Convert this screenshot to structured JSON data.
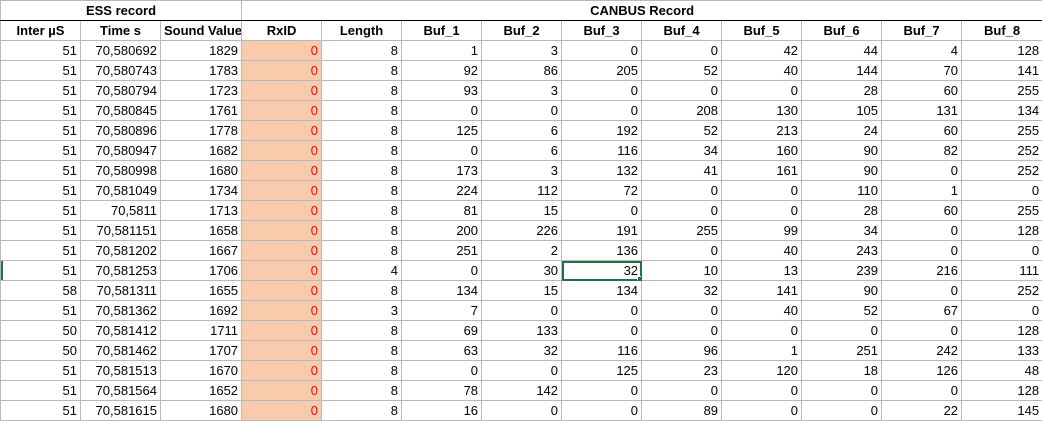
{
  "groups": {
    "ess": "ESS record",
    "canbus": "CANBUS Record"
  },
  "columns": [
    "Inter µS",
    "Time s",
    "Sound Value",
    "RxID",
    "Length",
    "Buf_1",
    "Buf_2",
    "Buf_3",
    "Buf_4",
    "Buf_5",
    "Buf_6",
    "Buf_7",
    "Buf_8"
  ],
  "rows": [
    [
      "51",
      "70,580692",
      "1829",
      "0",
      "8",
      "1",
      "3",
      "0",
      "0",
      "42",
      "44",
      "4",
      "128"
    ],
    [
      "51",
      "70,580743",
      "1783",
      "0",
      "8",
      "92",
      "86",
      "205",
      "52",
      "40",
      "144",
      "70",
      "141"
    ],
    [
      "51",
      "70,580794",
      "1723",
      "0",
      "8",
      "93",
      "3",
      "0",
      "0",
      "0",
      "28",
      "60",
      "255"
    ],
    [
      "51",
      "70,580845",
      "1761",
      "0",
      "8",
      "0",
      "0",
      "0",
      "208",
      "130",
      "105",
      "131",
      "134"
    ],
    [
      "51",
      "70,580896",
      "1778",
      "0",
      "8",
      "125",
      "6",
      "192",
      "52",
      "213",
      "24",
      "60",
      "255"
    ],
    [
      "51",
      "70,580947",
      "1682",
      "0",
      "8",
      "0",
      "6",
      "116",
      "34",
      "160",
      "90",
      "82",
      "252"
    ],
    [
      "51",
      "70,580998",
      "1680",
      "0",
      "8",
      "173",
      "3",
      "132",
      "41",
      "161",
      "90",
      "0",
      "252"
    ],
    [
      "51",
      "70,581049",
      "1734",
      "0",
      "8",
      "224",
      "112",
      "72",
      "0",
      "0",
      "110",
      "1",
      "0"
    ],
    [
      "51",
      "70,5811",
      "1713",
      "0",
      "8",
      "81",
      "15",
      "0",
      "0",
      "0",
      "28",
      "60",
      "255"
    ],
    [
      "51",
      "70,581151",
      "1658",
      "0",
      "8",
      "200",
      "226",
      "191",
      "255",
      "99",
      "34",
      "0",
      "128"
    ],
    [
      "51",
      "70,581202",
      "1667",
      "0",
      "8",
      "251",
      "2",
      "136",
      "0",
      "40",
      "243",
      "0",
      "0"
    ],
    [
      "51",
      "70,581253",
      "1706",
      "0",
      "4",
      "0",
      "30",
      "32",
      "10",
      "13",
      "239",
      "216",
      "111"
    ],
    [
      "58",
      "70,581311",
      "1655",
      "0",
      "8",
      "134",
      "15",
      "134",
      "32",
      "141",
      "90",
      "0",
      "252"
    ],
    [
      "51",
      "70,581362",
      "1692",
      "0",
      "3",
      "7",
      "0",
      "0",
      "0",
      "40",
      "52",
      "67",
      "0"
    ],
    [
      "50",
      "70,581412",
      "1711",
      "0",
      "8",
      "69",
      "133",
      "0",
      "0",
      "0",
      "0",
      "0",
      "128"
    ],
    [
      "50",
      "70,581462",
      "1707",
      "0",
      "8",
      "63",
      "32",
      "116",
      "96",
      "1",
      "251",
      "242",
      "133"
    ],
    [
      "51",
      "70,581513",
      "1670",
      "0",
      "8",
      "0",
      "0",
      "125",
      "23",
      "120",
      "18",
      "126",
      "48"
    ],
    [
      "51",
      "70,581564",
      "1652",
      "0",
      "8",
      "78",
      "142",
      "0",
      "0",
      "0",
      "0",
      "0",
      "128"
    ],
    [
      "51",
      "70,581615",
      "1680",
      "0",
      "8",
      "16",
      "0",
      "0",
      "89",
      "0",
      "0",
      "22",
      "145"
    ]
  ],
  "selection": {
    "row": 11,
    "col": 7
  },
  "colors": {
    "rxid_fill": "#f8cbad",
    "rxid_text": "#ff0000",
    "selection": "#217346",
    "grid": "#b8b8b8"
  }
}
